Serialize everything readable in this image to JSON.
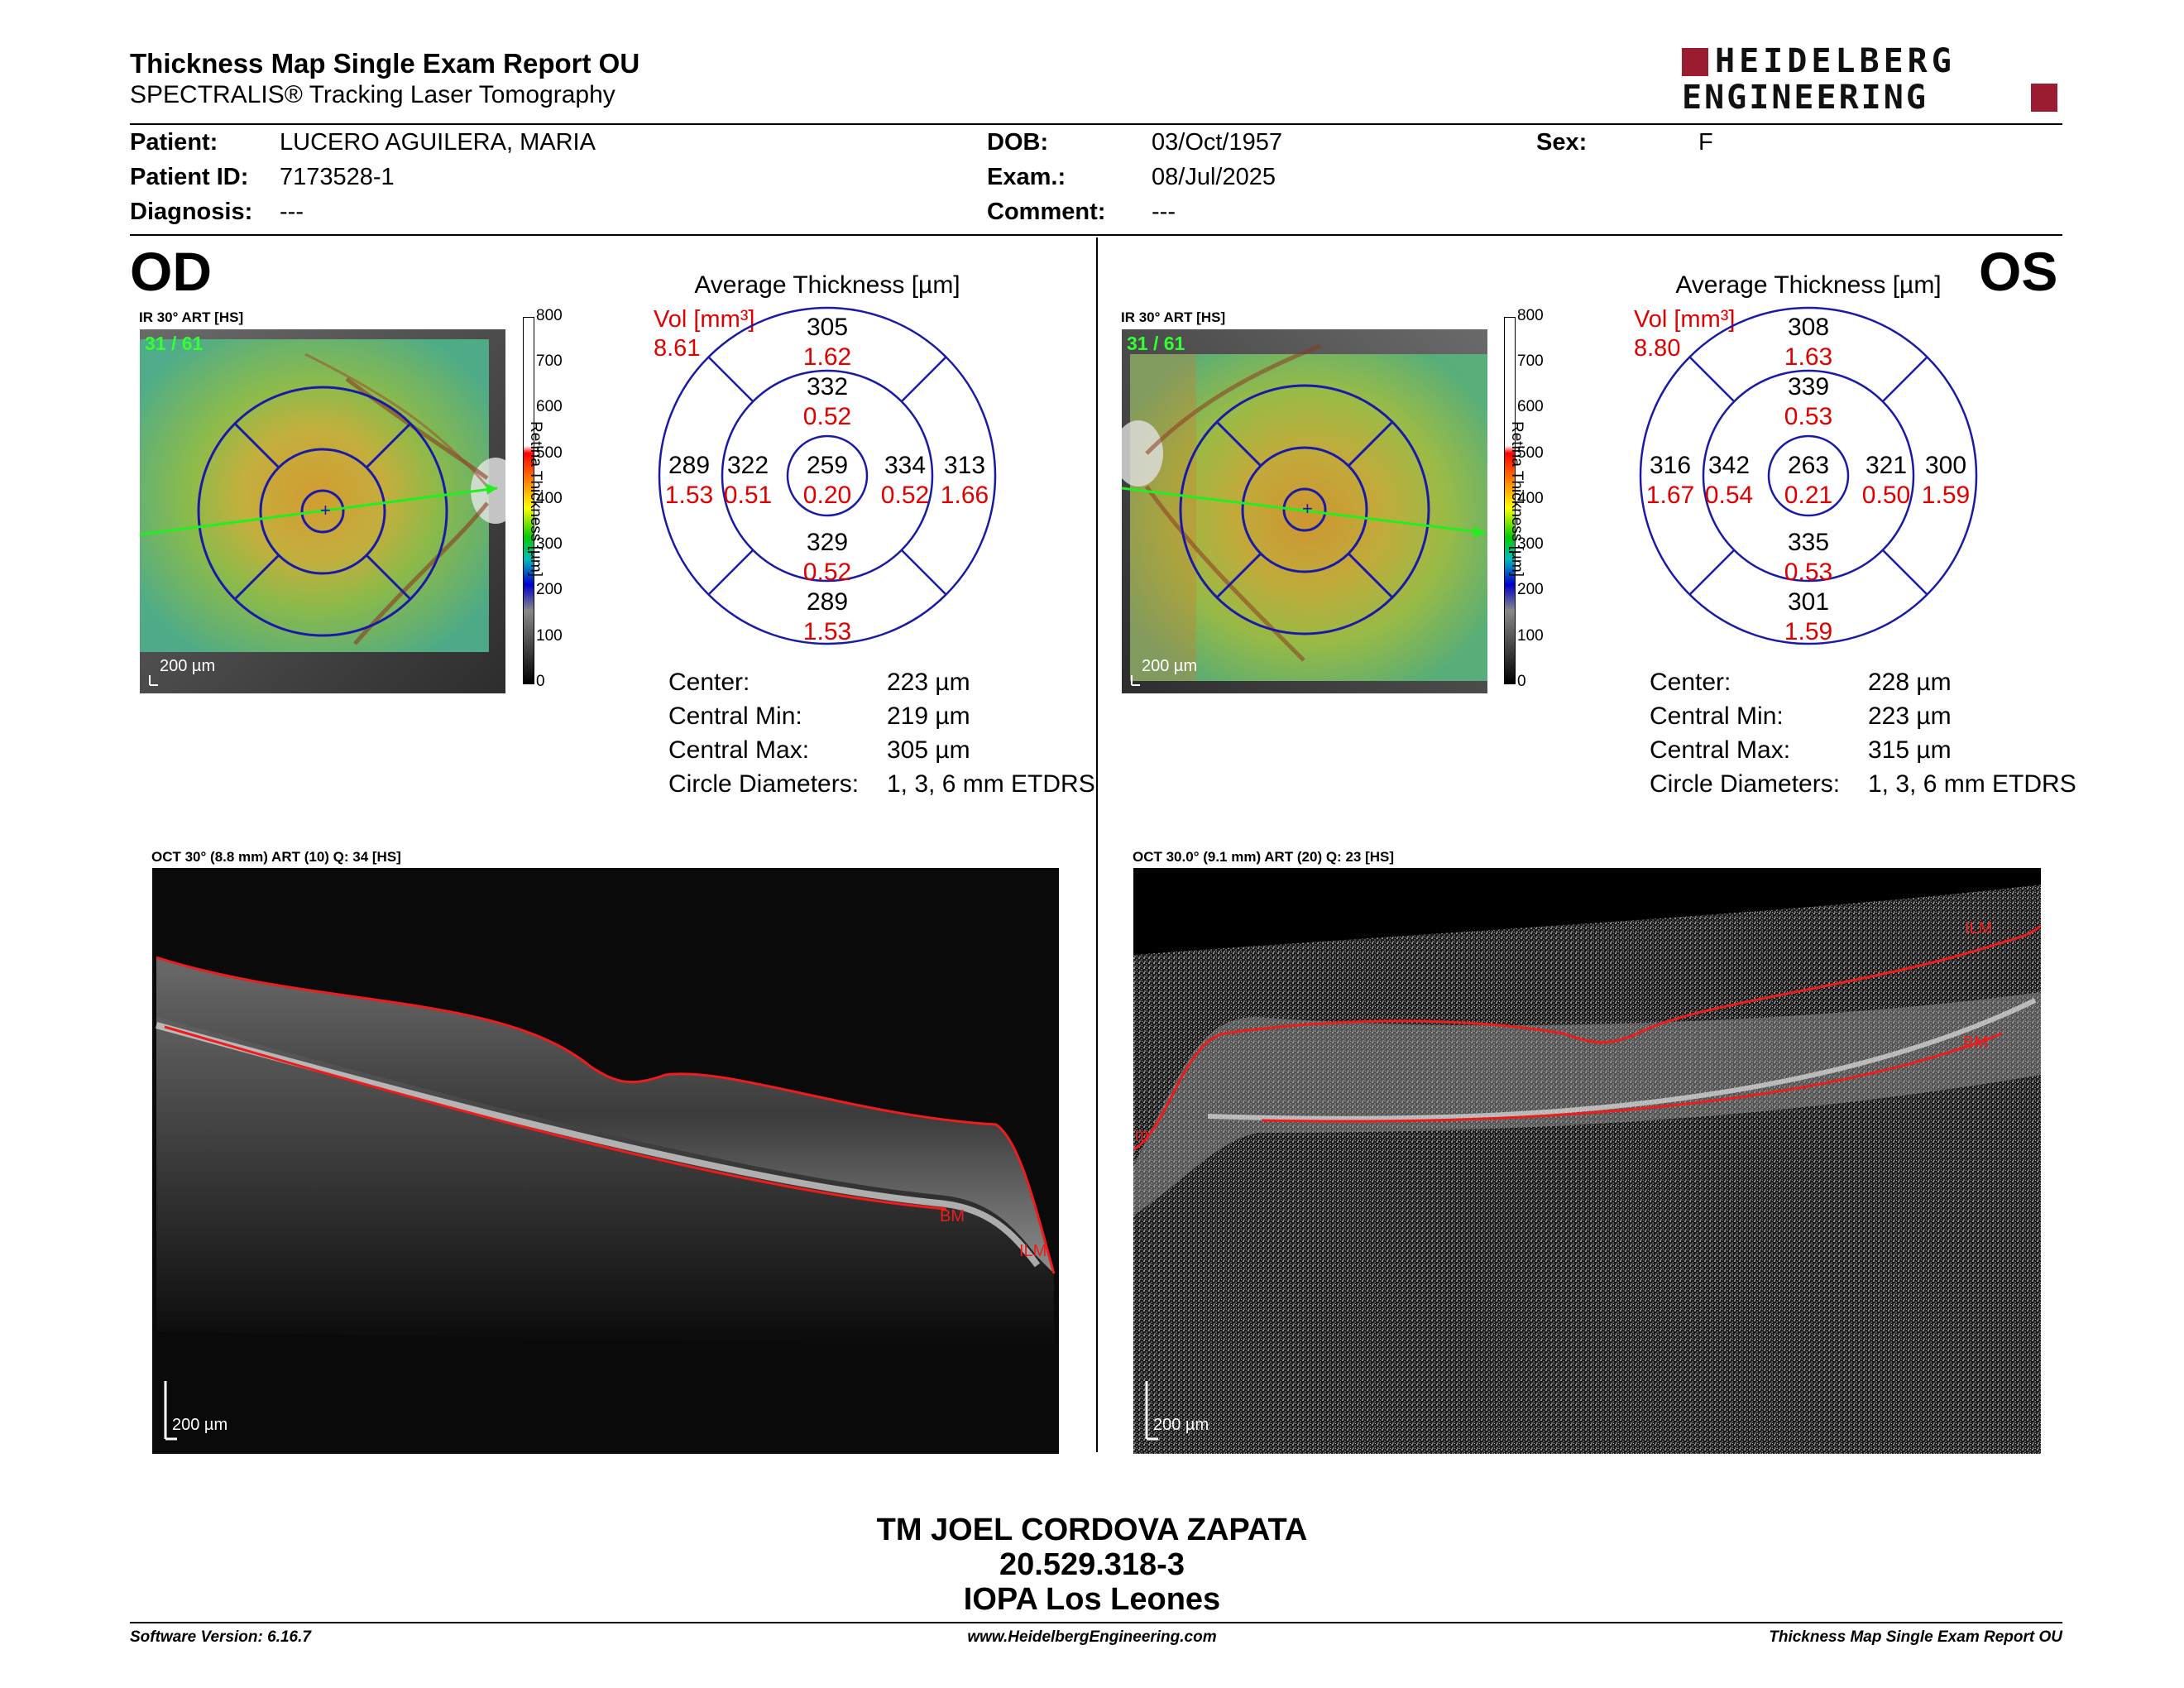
{
  "report": {
    "title": "Thickness Map Single Exam Report OU",
    "subtitle": "SPECTRALIS® Tracking Laser Tomography",
    "logo_line1": "HEIDELBERG",
    "logo_line2": "ENGINEERING",
    "brand_color": "#9b1b30"
  },
  "patient": {
    "patient_label": "Patient:",
    "patient_value": "LUCERO AGUILERA, MARIA",
    "id_label": "Patient ID:",
    "id_value": "7173528-1",
    "diag_label": "Diagnosis:",
    "diag_value": "---",
    "dob_label": "DOB:",
    "dob_value": "03/Oct/1957",
    "exam_label": "Exam.:",
    "exam_value": "08/Jul/2025",
    "comment_label": "Comment:",
    "comment_value": "---",
    "sex_label": "Sex:",
    "sex_value": "F"
  },
  "scale": {
    "label": "Retina Thickness [µm]",
    "ticks": [
      "800",
      "700",
      "600",
      "500",
      "400",
      "300",
      "200",
      "100",
      "0"
    ]
  },
  "od": {
    "eye": "OD",
    "fundus_title": "IR 30° ART [HS]",
    "fundus_count": "31 / 61",
    "fundus_scale": "200 µm",
    "grid_title": "Average Thickness [µm]",
    "vol_label": "Vol [mm³]",
    "vol_value": "8.61",
    "sectors": {
      "outer_sup": {
        "t": "305",
        "v": "1.62"
      },
      "inner_sup": {
        "t": "332",
        "v": "0.52"
      },
      "outer_nas_left": {
        "t": "289",
        "v": "1.53"
      },
      "inner_left": {
        "t": "322",
        "v": "0.51"
      },
      "center": {
        "t": "259",
        "v": "0.20"
      },
      "inner_right": {
        "t": "334",
        "v": "0.52"
      },
      "outer_right": {
        "t": "313",
        "v": "1.66"
      },
      "inner_inf": {
        "t": "329",
        "v": "0.52"
      },
      "outer_inf": {
        "t": "289",
        "v": "1.53"
      }
    },
    "stats": [
      {
        "label": "Center:",
        "value": "223 µm"
      },
      {
        "label": "Central Min:",
        "value": "219 µm"
      },
      {
        "label": "Central Max:",
        "value": "305 µm"
      },
      {
        "label": "Circle Diameters:",
        "value": "1, 3, 6 mm ETDRS"
      }
    ],
    "oct_title": "OCT 30° (8.8 mm) ART (10) Q: 34 [HS]",
    "oct_scale": "200 µm",
    "oct_label_bm": "BM",
    "oct_label_ilm": "ILM"
  },
  "os": {
    "eye": "OS",
    "fundus_title": "IR 30° ART [HS]",
    "fundus_count": "31 / 61",
    "fundus_scale": "200 µm",
    "grid_title": "Average Thickness [µm]",
    "vol_label": "Vol [mm³]",
    "vol_value": "8.80",
    "sectors": {
      "outer_sup": {
        "t": "308",
        "v": "1.63"
      },
      "inner_sup": {
        "t": "339",
        "v": "0.53"
      },
      "outer_nas_left": {
        "t": "316",
        "v": "1.67"
      },
      "inner_left": {
        "t": "342",
        "v": "0.54"
      },
      "center": {
        "t": "263",
        "v": "0.21"
      },
      "inner_right": {
        "t": "321",
        "v": "0.50"
      },
      "outer_right": {
        "t": "300",
        "v": "1.59"
      },
      "inner_inf": {
        "t": "335",
        "v": "0.53"
      },
      "outer_inf": {
        "t": "301",
        "v": "1.59"
      }
    },
    "stats": [
      {
        "label": "Center:",
        "value": "228 µm"
      },
      {
        "label": "Central Min:",
        "value": "223 µm"
      },
      {
        "label": "Central Max:",
        "value": "315 µm"
      },
      {
        "label": "Circle Diameters:",
        "value": "1, 3, 6 mm ETDRS"
      }
    ],
    "oct_title": "OCT 30.0° (9.1 mm) ART (20) Q: 23 [HS]",
    "oct_scale": "200 µm",
    "oct_label_bm": "BM",
    "oct_label_ilm": "ILM",
    "oct_label_left": "m"
  },
  "signature": {
    "line1": "TM JOEL CORDOVA ZAPATA",
    "line2": "20.529.318-3",
    "line3": "IOPA Los Leones"
  },
  "footer": {
    "left": "Software Version: 6.16.7",
    "center": "www.HeidelbergEngineering.com",
    "right": "Thickness Map Single Exam Report OU"
  }
}
